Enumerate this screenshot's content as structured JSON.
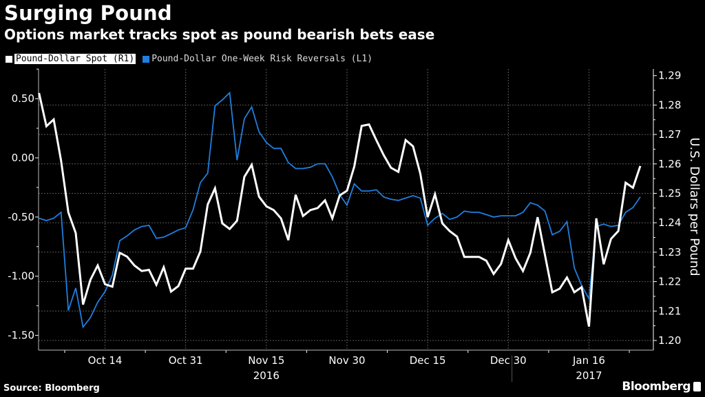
{
  "header": {
    "title": "Surging Pound",
    "subtitle": "Options market tracks spot as pound bearish bets ease"
  },
  "footer": {
    "source": "Source: Bloomberg",
    "logo": "Bloomberg"
  },
  "chart_data": {
    "type": "line",
    "title": "Surging Pound",
    "subtitle": "Options market tracks spot as pound bearish bets ease",
    "legend_position": "top-left",
    "grid": true,
    "x": [
      "2016-10-03",
      "2016-10-04",
      "2016-10-05",
      "2016-10-06",
      "2016-10-07",
      "2016-10-10",
      "2016-10-11",
      "2016-10-12",
      "2016-10-13",
      "2016-10-14",
      "2016-10-17",
      "2016-10-18",
      "2016-10-19",
      "2016-10-20",
      "2016-10-21",
      "2016-10-24",
      "2016-10-25",
      "2016-10-26",
      "2016-10-27",
      "2016-10-28",
      "2016-10-31",
      "2016-11-01",
      "2016-11-02",
      "2016-11-03",
      "2016-11-04",
      "2016-11-07",
      "2016-11-08",
      "2016-11-09",
      "2016-11-10",
      "2016-11-11",
      "2016-11-14",
      "2016-11-15",
      "2016-11-16",
      "2016-11-17",
      "2016-11-18",
      "2016-11-21",
      "2016-11-22",
      "2016-11-23",
      "2016-11-24",
      "2016-11-25",
      "2016-11-28",
      "2016-11-29",
      "2016-11-30",
      "2016-12-01",
      "2016-12-02",
      "2016-12-05",
      "2016-12-06",
      "2016-12-07",
      "2016-12-08",
      "2016-12-09",
      "2016-12-12",
      "2016-12-13",
      "2016-12-14",
      "2016-12-15",
      "2016-12-16",
      "2016-12-19",
      "2016-12-20",
      "2016-12-21",
      "2016-12-22",
      "2016-12-23",
      "2016-12-26",
      "2016-12-27",
      "2016-12-28",
      "2016-12-29",
      "2016-12-30",
      "2017-01-02",
      "2017-01-03",
      "2017-01-04",
      "2017-01-05",
      "2017-01-06",
      "2017-01-09",
      "2017-01-10",
      "2017-01-11",
      "2017-01-12",
      "2017-01-13",
      "2017-01-16",
      "2017-01-17",
      "2017-01-18",
      "2017-01-19",
      "2017-01-20",
      "2017-01-23",
      "2017-01-24",
      "2017-01-25"
    ],
    "x_ticks": [
      {
        "date": "2016-10-14",
        "label": "Oct 14"
      },
      {
        "date": "2016-10-31",
        "label": "Oct 31"
      },
      {
        "date": "2016-11-15",
        "label": "Nov 15"
      },
      {
        "date": "2016-11-30",
        "label": "Nov 30"
      },
      {
        "date": "2016-12-15",
        "label": "Dec 15"
      },
      {
        "date": "2016-12-30",
        "label": "Dec 30"
      },
      {
        "date": "2017-01-16",
        "label": "Jan 16"
      }
    ],
    "x_years": [
      {
        "date": "2016-11-15",
        "label": "2016"
      },
      {
        "date": "2017-01-16",
        "label": "2017"
      }
    ],
    "y_left": {
      "label": "",
      "ylim": [
        -1.62,
        0.75
      ],
      "ticks": [
        0.5,
        0.0,
        -0.5,
        -1.0,
        -1.5
      ],
      "tick_labels": [
        "0.50",
        "0.00",
        "-0.50",
        "-1.00",
        "-1.50"
      ]
    },
    "y_right": {
      "label": "U.S. Dollars per Pound",
      "ylim": [
        1.197,
        1.2925
      ],
      "ticks": [
        1.29,
        1.28,
        1.27,
        1.26,
        1.25,
        1.24,
        1.23,
        1.22,
        1.21,
        1.2
      ],
      "tick_labels": [
        "1.29",
        "1.28",
        "1.27",
        "1.26",
        "1.25",
        "1.24",
        "1.23",
        "1.22",
        "1.21",
        "1.20"
      ]
    },
    "series": [
      {
        "name": "Pound-Dollar Spot (R1)",
        "axis": "right",
        "color": "#ffffff",
        "values": [
          1.2841,
          1.2728,
          1.2751,
          1.2611,
          1.2435,
          1.2365,
          1.2122,
          1.2206,
          1.2255,
          1.2191,
          1.2183,
          1.2298,
          1.2285,
          1.2255,
          1.2236,
          1.224,
          1.2189,
          1.2249,
          1.2166,
          1.2185,
          1.2244,
          1.2244,
          1.2302,
          1.2462,
          1.2517,
          1.2398,
          1.2379,
          1.2407,
          1.2556,
          1.2597,
          1.2489,
          1.2456,
          1.2443,
          1.2415,
          1.2341,
          1.2495,
          1.2423,
          1.2443,
          1.245,
          1.2476,
          1.2415,
          1.2493,
          1.2509,
          1.2591,
          1.2729,
          1.2734,
          1.2681,
          1.263,
          1.2587,
          1.2573,
          1.2681,
          1.266,
          1.2567,
          1.2419,
          1.2497,
          1.2398,
          1.2372,
          1.2353,
          1.2284,
          1.2284,
          1.2284,
          1.2271,
          1.2226,
          1.226,
          1.2341,
          1.2279,
          1.2236,
          1.2298,
          1.2419,
          1.229,
          1.2164,
          1.2176,
          1.2214,
          1.2164,
          1.2181,
          1.2047,
          1.2415,
          1.2259,
          1.2345,
          1.2372,
          1.2536,
          1.2519,
          1.2593
        ]
      },
      {
        "name": "Pound-Dollar One-Week Risk Reversals (L1)",
        "axis": "left",
        "color": "#1f7fe0",
        "values": [
          -0.51,
          -0.53,
          -0.51,
          -0.46,
          -1.29,
          -1.1,
          -1.43,
          -1.35,
          -1.22,
          -1.13,
          -0.99,
          -0.7,
          -0.66,
          -0.61,
          -0.58,
          -0.57,
          -0.68,
          -0.67,
          -0.64,
          -0.61,
          -0.59,
          -0.44,
          -0.21,
          -0.13,
          0.44,
          0.49,
          0.55,
          -0.02,
          0.33,
          0.43,
          0.22,
          0.13,
          0.08,
          0.08,
          -0.04,
          -0.09,
          -0.09,
          -0.08,
          -0.05,
          -0.05,
          -0.16,
          -0.31,
          -0.4,
          -0.22,
          -0.28,
          -0.28,
          -0.27,
          -0.33,
          -0.35,
          -0.36,
          -0.34,
          -0.32,
          -0.34,
          -0.57,
          -0.51,
          -0.47,
          -0.52,
          -0.5,
          -0.45,
          -0.46,
          -0.46,
          -0.48,
          -0.5,
          -0.49,
          -0.49,
          -0.49,
          -0.46,
          -0.38,
          -0.4,
          -0.45,
          -0.65,
          -0.62,
          -0.54,
          -0.93,
          -1.08,
          -1.19,
          -0.58,
          -0.56,
          -0.58,
          -0.57,
          -0.46,
          -0.42,
          -0.33
        ]
      }
    ]
  }
}
